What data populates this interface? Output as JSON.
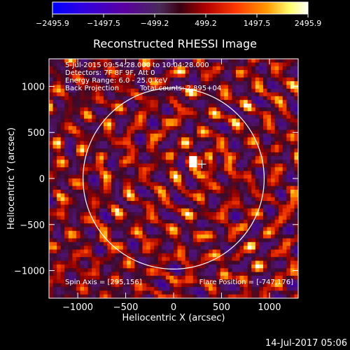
{
  "chart_data": {
    "type": "heatmap",
    "title": "Reconstructed RHESSI Image",
    "xlabel": "Heliocentric X (arcsec)",
    "ylabel": "Heliocentric Y (arcsec)",
    "xlim": [
      -1300,
      1300
    ],
    "ylim": [
      -1300,
      1300
    ],
    "xticks": [
      -1000,
      -500,
      0,
      500,
      1000
    ],
    "xtick_labels": [
      "−1000",
      "−500",
      "0",
      "500",
      "1000"
    ],
    "yticks": [
      -1000,
      -500,
      0,
      500,
      1000
    ],
    "ytick_labels": [
      "−1000",
      "−500",
      "0",
      "500",
      "1000"
    ],
    "colorbar": {
      "min": -2495.9,
      "max": 2495.9,
      "ticks": [
        -2495.9,
        -1497.5,
        -499.2,
        499.2,
        1497.5,
        2495.9
      ],
      "labels": [
        "−2495.9",
        "−1497.5",
        "−499.2",
        "499.2",
        "1497.5",
        "2495.9"
      ],
      "colors": [
        "#0000ff",
        "#5a00b0",
        "#5a2a7a",
        "#b00000",
        "#ff4000",
        "#ff9a00",
        "#ffff90",
        "#ffffff"
      ]
    },
    "annotations": [
      "5-Jul-2015 09:54:28.000 to 10:04:28.000",
      "Detectors: 7F 8F 9F, Att 0",
      "Energy Range: 6.0 - 25.0 keV",
      "Back Projection",
      "Total counts: 2.895+04"
    ],
    "solar_radius": 945,
    "flare_marker": [
      295,
      156
    ],
    "spin_axis_label": "Spin Axis = [295,156]",
    "flare_position_label": "Flare Position = [-747,176]"
  },
  "footer": {
    "timestamp": "14-Jul-2017 05:06"
  }
}
